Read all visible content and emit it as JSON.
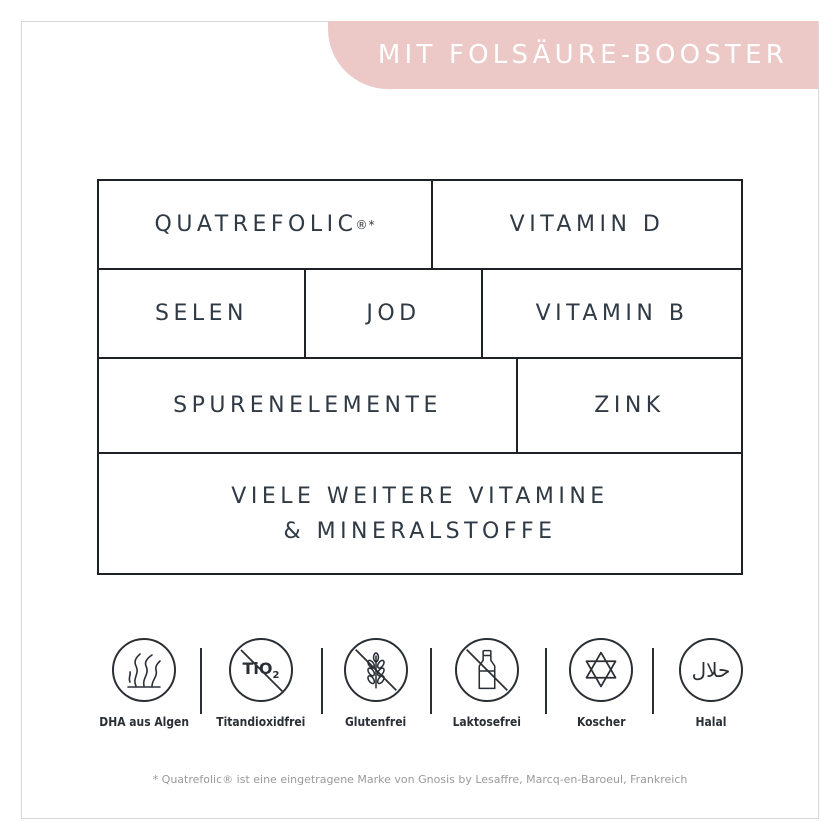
{
  "banner": {
    "text": "MIT FOLSÄURE-BOOSTER",
    "color": "#ecc9c7"
  },
  "ingredients": {
    "quatrefolic": "QUATREFOLIC",
    "quatrefolic_mark": "®*",
    "vitamin_d": "VITAMIN D",
    "selen": "SELEN",
    "jod": "JOD",
    "vitamin_b": "VITAMIN B",
    "spurenelemente": "SPURENELEMENTE",
    "zink": "ZINK",
    "more_line1": "VIELE WEITERE VITAMINE",
    "more_line2": "& MINERALSTOFFE"
  },
  "badges": [
    {
      "label": "DHA aus Algen",
      "icon": "algae-icon"
    },
    {
      "label": "Titandioxidfrei",
      "icon": "tio2-crossed-icon",
      "icon_text": "TiO",
      "icon_sub": "2"
    },
    {
      "label": "Glutenfrei",
      "icon": "wheat-crossed-icon"
    },
    {
      "label": "Laktosefrei",
      "icon": "milk-bottle-crossed-icon"
    },
    {
      "label": "Koscher",
      "icon": "star-of-david-icon"
    },
    {
      "label": "Halal",
      "icon": "halal-arabic-icon",
      "icon_text": "حلال"
    }
  ],
  "footnote": "* Quatrefolic® ist eine eingetragene Marke von Gnosis by Lesaffre, Marcq-en-Baroeul, Frankreich"
}
